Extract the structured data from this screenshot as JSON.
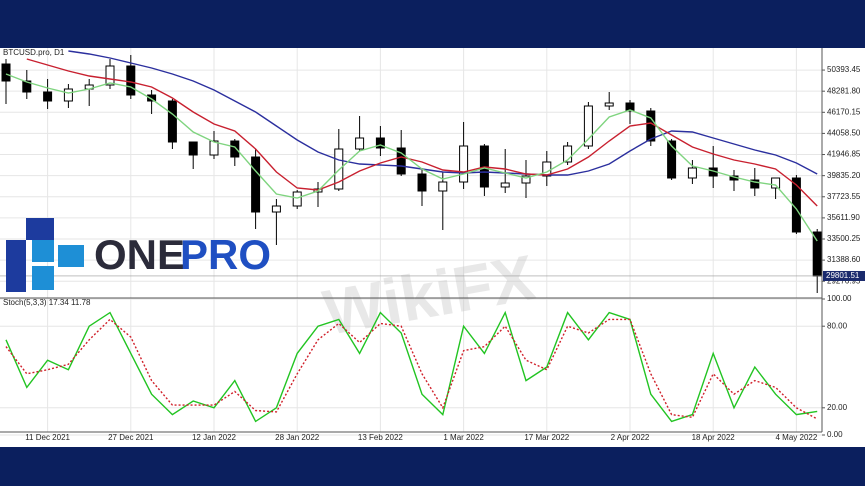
{
  "logo": [
    "ONE",
    "PRO"
  ],
  "watermark": "WikiFX",
  "chart_data": [
    {
      "type": "candlestick",
      "title": "BTCUSD.pro, D1",
      "categories": [
        null,
        null,
        "11 Dec 2021",
        null,
        null,
        null,
        "27 Dec 2021",
        null,
        null,
        null,
        "12 Jan 2022",
        null,
        null,
        null,
        "28 Jan 2022",
        null,
        null,
        null,
        "13 Feb 2022",
        null,
        null,
        null,
        "1 Mar 2022",
        null,
        null,
        null,
        "17 Mar 2022",
        null,
        null,
        null,
        "2 Apr 2022",
        null,
        null,
        null,
        "18 Apr 2022",
        null,
        null,
        null,
        "4 May 2022",
        null
      ],
      "open": [
        51000,
        49300,
        48200,
        47300,
        48500,
        48900,
        50800,
        47900,
        47300,
        43200,
        41900,
        43300,
        41700,
        36200,
        36800,
        38200,
        38500,
        42500,
        43600,
        42600,
        40000,
        38300,
        39200,
        42800,
        38700,
        39100,
        39800,
        41200,
        42800,
        46800,
        47100,
        46300,
        43300,
        39600,
        40600,
        39800,
        39400,
        38600,
        39600,
        34200
      ],
      "high": [
        51500,
        50400,
        49500,
        49000,
        49500,
        51500,
        51900,
        48400,
        47500,
        43200,
        44300,
        43500,
        42500,
        37500,
        38400,
        39200,
        44500,
        45800,
        44800,
        44400,
        40600,
        40200,
        45200,
        43000,
        42500,
        41400,
        42300,
        43200,
        47200,
        48200,
        47400,
        46600,
        43500,
        41400,
        42800,
        40400,
        40600,
        39600,
        39900,
        34500
      ],
      "low": [
        47000,
        47500,
        46500,
        46600,
        46800,
        48500,
        47500,
        46000,
        42500,
        40500,
        41500,
        40800,
        34500,
        32900,
        36500,
        36700,
        38300,
        42300,
        41800,
        39800,
        36800,
        34400,
        38500,
        37800,
        38100,
        37600,
        38800,
        40900,
        42500,
        46400,
        45000,
        42800,
        39400,
        39000,
        38600,
        38300,
        37800,
        37500,
        34000,
        28100
      ],
      "close": [
        49300,
        48200,
        47300,
        48500,
        48900,
        50800,
        47900,
        47300,
        43200,
        41900,
        43300,
        41700,
        36200,
        36800,
        38200,
        38500,
        42500,
        43600,
        42600,
        40000,
        38300,
        39200,
        42800,
        38700,
        39100,
        39800,
        41200,
        42800,
        46800,
        47100,
        46300,
        43300,
        39600,
        40600,
        39800,
        39400,
        38600,
        39600,
        34200,
        29800
      ],
      "up_color": "#ffffff",
      "down_color": "#000000",
      "series": [
        {
          "color": "#2b2f9e",
          "values": [
            null,
            null,
            null,
            52300,
            52000,
            51600,
            51100,
            50600,
            50000,
            49300,
            48400,
            47300,
            46200,
            44800,
            43400,
            42200,
            41400,
            41000,
            40900,
            40800,
            40500,
            40200,
            40100,
            40200,
            40100,
            40000,
            39900,
            39900,
            40300,
            41000,
            42300,
            43500,
            44300,
            44200,
            43600,
            43000,
            42400,
            41900,
            41100,
            40000
          ]
        },
        {
          "color": "#c8202f",
          "values": [
            null,
            51500,
            50900,
            50300,
            49800,
            49500,
            49200,
            48700,
            47600,
            46200,
            45000,
            44300,
            42500,
            40200,
            38600,
            38400,
            39200,
            40300,
            41100,
            41700,
            41200,
            40400,
            40200,
            40700,
            40500,
            40000,
            39900,
            40500,
            41700,
            43300,
            44800,
            45100,
            43900,
            42700,
            42000,
            41400,
            41000,
            40500,
            38900,
            36800
          ]
        },
        {
          "color": "#7fd47f",
          "values": [
            50000,
            49200,
            48600,
            48100,
            48500,
            49100,
            48700,
            47500,
            46000,
            44200,
            43200,
            42700,
            40300,
            38000,
            37600,
            38300,
            40400,
            42300,
            42900,
            42100,
            40500,
            39500,
            40000,
            40600,
            40100,
            39600,
            40200,
            41400,
            43500,
            45700,
            46400,
            45600,
            42800,
            40800,
            40300,
            39700,
            39200,
            38900,
            36500,
            33300
          ]
        }
      ],
      "last_price": 29801.51,
      "ylim": [
        27600,
        52600
      ],
      "yticks": [
        50393.45,
        {
          "value": 48281.8,
          "label": "48281.80"
        },
        46170.15,
        {
          "value": 44058.5,
          "label": "44058.50"
        },
        41946.85,
        {
          "value": 39835.2,
          "label": "39835.20"
        },
        37723.55,
        {
          "value": 35611.9,
          "label": "35611.90"
        },
        33500.25,
        {
          "value": 31388.6,
          "label": "31388.60"
        },
        29276.95
      ],
      "grid": true
    },
    {
      "type": "line",
      "title": "Stoch(5,3,3) 17.34 11.78",
      "series": [
        {
          "color": "#22c422",
          "dashed": false,
          "values": [
            70,
            35,
            55,
            48,
            80,
            90,
            60,
            30,
            15,
            25,
            20,
            40,
            10,
            20,
            60,
            80,
            85,
            60,
            90,
            75,
            30,
            15,
            80,
            60,
            90,
            40,
            50,
            90,
            70,
            90,
            85,
            30,
            10,
            15,
            60,
            20,
            50,
            30,
            15,
            17.34
          ]
        },
        {
          "color": "#d0202a",
          "dashed": true,
          "values": [
            65,
            45,
            48,
            52,
            70,
            85,
            72,
            40,
            22,
            22,
            22,
            32,
            18,
            17,
            45,
            70,
            82,
            68,
            82,
            80,
            45,
            20,
            62,
            65,
            80,
            55,
            48,
            80,
            75,
            85,
            85,
            45,
            15,
            13,
            45,
            30,
            40,
            35,
            20,
            11.78
          ]
        }
      ],
      "ylim": [
        0,
        100
      ],
      "yticks": [
        {
          "value": 100,
          "label": "100.00"
        },
        {
          "value": 80,
          "label": "80.00"
        },
        {
          "value": 20,
          "label": "20.00"
        },
        {
          "value": 0,
          "label": "0.00"
        }
      ],
      "grid": true
    }
  ]
}
